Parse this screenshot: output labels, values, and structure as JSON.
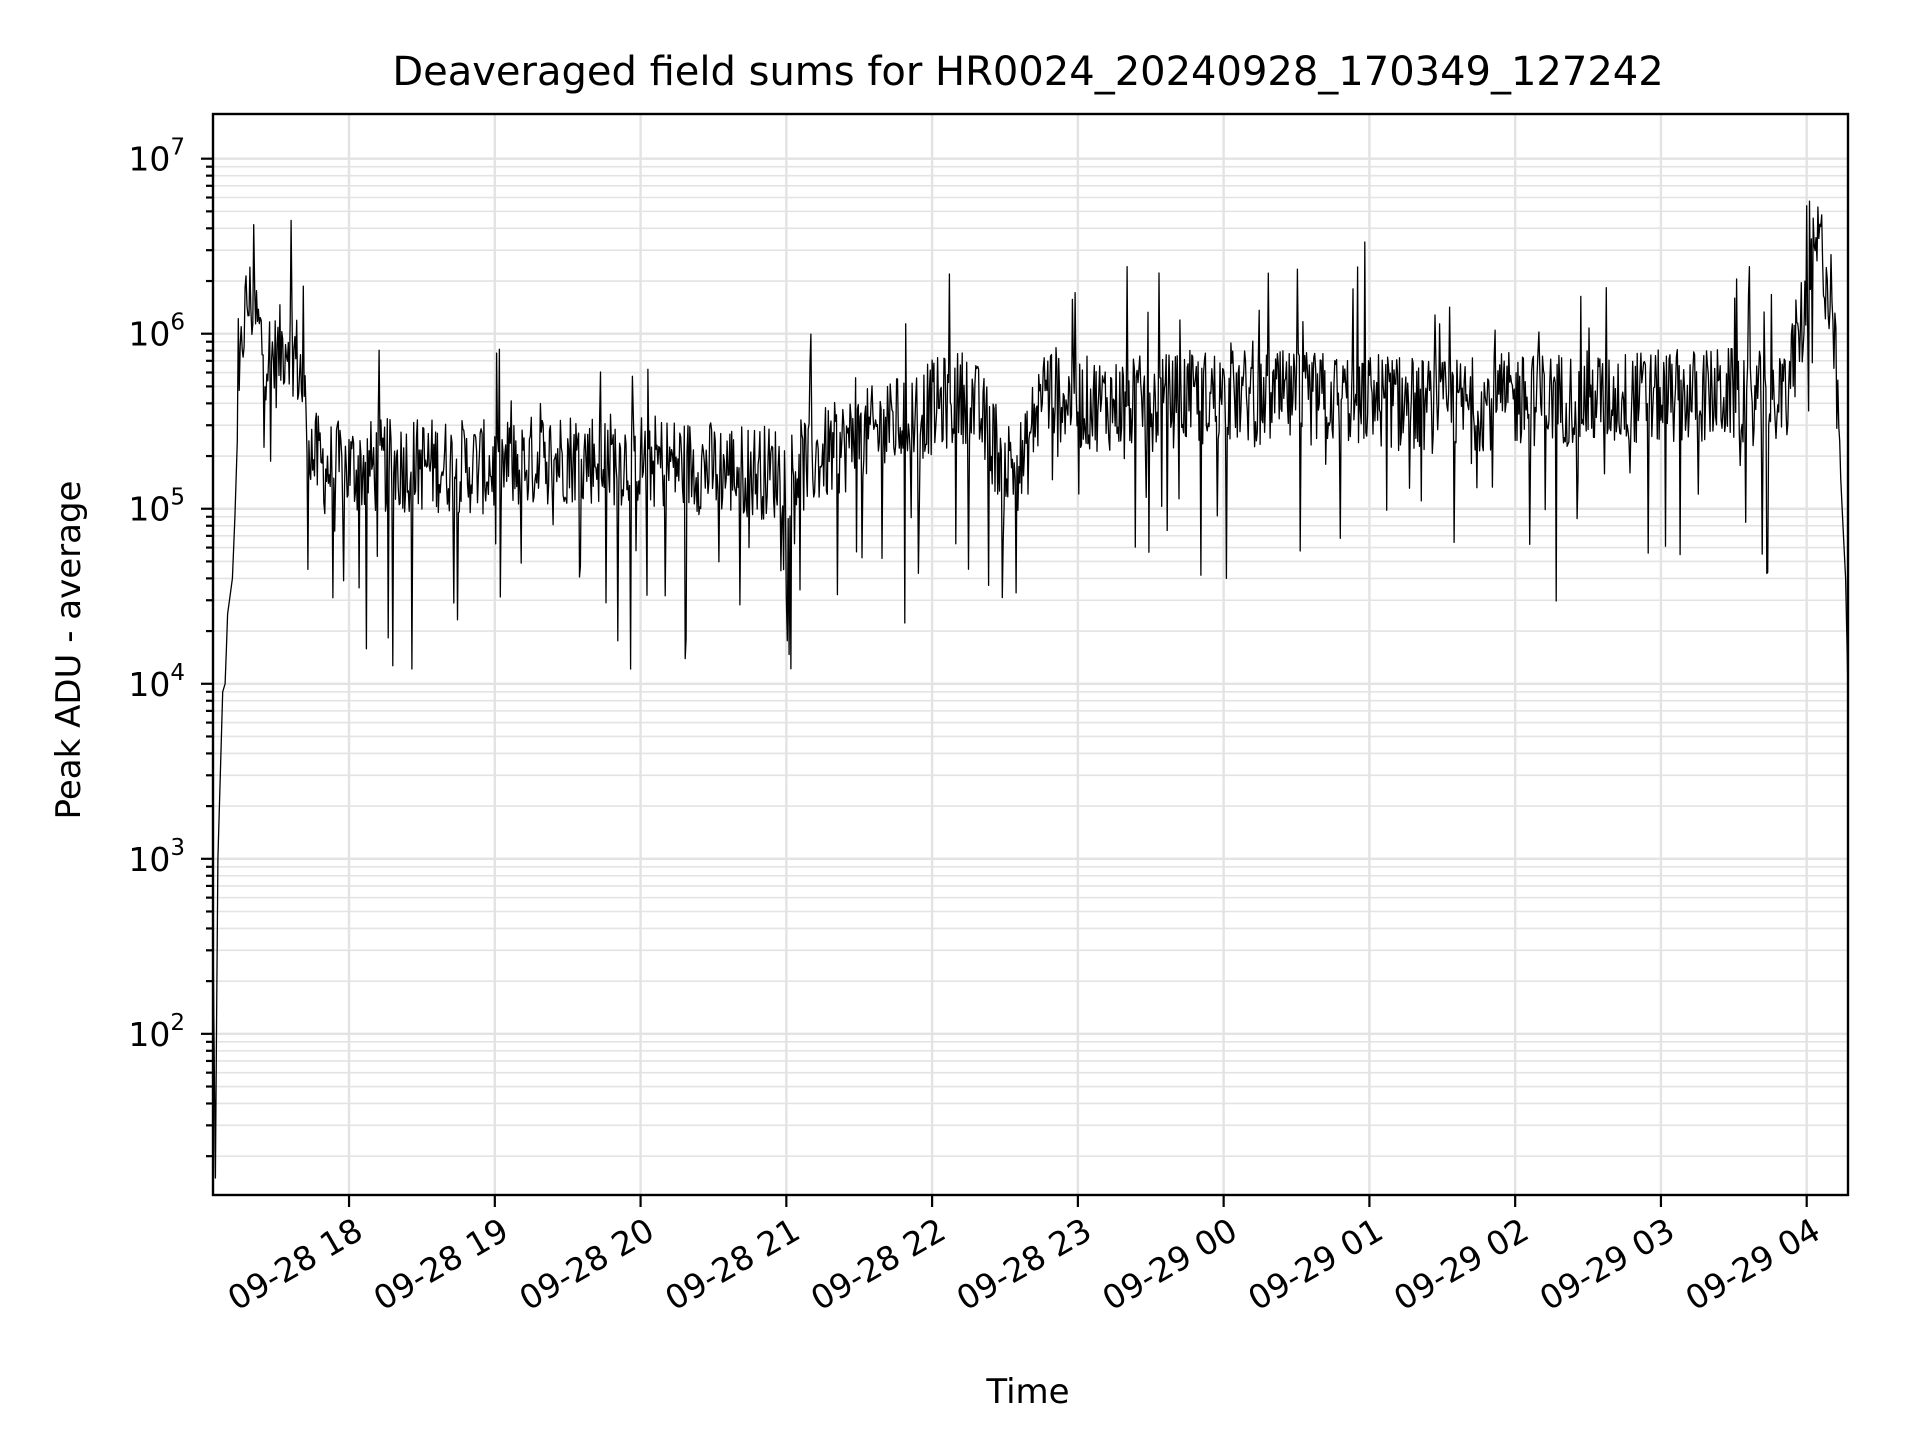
{
  "chart_data": {
    "type": "line",
    "title": "Deaveraged field sums for HR0024_20240928_170349_127242",
    "xlabel": "Time",
    "ylabel": "Peak ADU - average",
    "yscale": "log",
    "ylim": [
      12,
      18000000
    ],
    "xlim": [
      "2024-09-28 17:04",
      "2024-09-29 04:17"
    ],
    "grid": true,
    "line_color": "#000000",
    "x_ticks": [
      {
        "value": "2024-09-28 18:00",
        "label": "09-28 18"
      },
      {
        "value": "2024-09-28 19:00",
        "label": "09-28 19"
      },
      {
        "value": "2024-09-28 20:00",
        "label": "09-28 20"
      },
      {
        "value": "2024-09-28 21:00",
        "label": "09-28 21"
      },
      {
        "value": "2024-09-28 22:00",
        "label": "09-28 22"
      },
      {
        "value": "2024-09-28 23:00",
        "label": "09-28 23"
      },
      {
        "value": "2024-09-29 00:00",
        "label": "09-29 00"
      },
      {
        "value": "2024-09-29 01:00",
        "label": "09-29 01"
      },
      {
        "value": "2024-09-29 02:00",
        "label": "09-29 02"
      },
      {
        "value": "2024-09-29 03:00",
        "label": "09-29 03"
      },
      {
        "value": "2024-09-29 04:00",
        "label": "09-29 04"
      }
    ],
    "y_ticks": [
      {
        "value": 100,
        "base": "10",
        "exp": "2"
      },
      {
        "value": 1000,
        "base": "10",
        "exp": "3"
      },
      {
        "value": 10000,
        "base": "10",
        "exp": "4"
      },
      {
        "value": 100000,
        "base": "10",
        "exp": "5"
      },
      {
        "value": 1000000,
        "base": "10",
        "exp": "6"
      },
      {
        "value": 10000000,
        "base": "10",
        "exp": "7"
      }
    ],
    "series": [
      {
        "x": [
          "2024-09-28 17:04",
          "2024-09-28 17:05",
          "2024-09-28 17:06",
          "2024-09-28 17:07",
          "2024-09-28 17:08",
          "2024-09-28 17:09",
          "2024-09-28 17:10",
          "2024-09-28 17:12",
          "2024-09-28 17:14",
          "2024-09-28 17:16",
          "2024-09-28 17:18",
          "2024-09-28 17:20",
          "2024-09-28 17:25",
          "2024-09-28 17:30",
          "2024-09-28 17:35",
          "2024-09-28 17:40",
          "2024-09-28 17:45",
          "2024-09-28 17:50",
          "2024-09-28 18:00",
          "2024-09-28 18:30",
          "2024-09-28 19:00",
          "2024-09-28 19:30",
          "2024-09-28 20:00",
          "2024-09-28 20:30",
          "2024-09-28 21:00",
          "2024-09-28 21:30",
          "2024-09-28 22:00",
          "2024-09-28 22:15",
          "2024-09-28 22:30",
          "2024-09-28 22:38",
          "2024-09-28 22:45",
          "2024-09-28 23:00",
          "2024-09-28 23:30",
          "2024-09-29 00:00",
          "2024-09-29 00:30",
          "2024-09-29 01:00",
          "2024-09-29 01:30",
          "2024-09-29 02:00",
          "2024-09-29 02:30",
          "2024-09-29 03:00",
          "2024-09-29 03:30",
          "2024-09-29 03:50",
          "2024-09-29 04:00",
          "2024-09-29 04:05",
          "2024-09-29 04:10",
          "2024-09-29 04:12",
          "2024-09-29 04:14",
          "2024-09-29 04:16",
          "2024-09-29 04:17"
        ],
        "y": [
          400,
          15,
          1000,
          3000,
          9000,
          10000,
          25000,
          40000,
          200000,
          1000000,
          1500000,
          1500000,
          800000,
          700000,
          1000000,
          600000,
          200000,
          170000,
          170000,
          180000,
          170000,
          200000,
          190000,
          170000,
          160000,
          250000,
          380000,
          450000,
          180000,
          180000,
          500000,
          400000,
          400000,
          450000,
          420000,
          430000,
          380000,
          420000,
          430000,
          430000,
          450000,
          400000,
          1500000,
          3500000,
          1500000,
          600000,
          150000,
          40000,
          9000
        ]
      }
    ]
  }
}
